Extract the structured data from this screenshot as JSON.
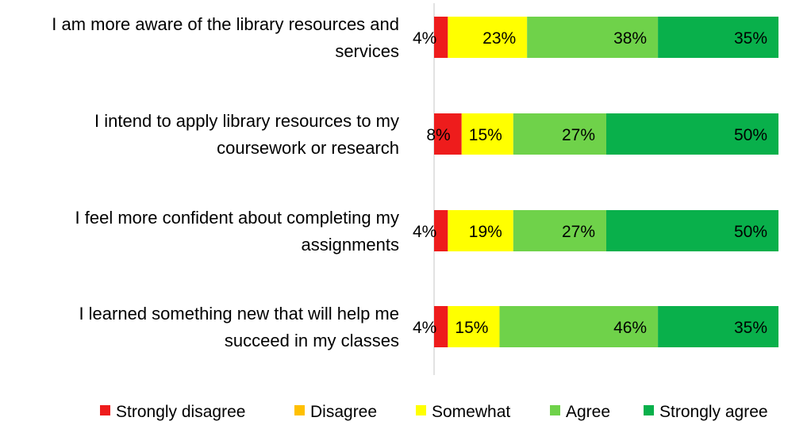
{
  "chart_data": {
    "type": "bar",
    "orientation": "horizontal",
    "stacked": true,
    "percent_stacked": true,
    "categories": [
      [
        "I am more aware of the library resources and",
        "services"
      ],
      [
        "I intend to apply library resources to my",
        "coursework or research"
      ],
      [
        "I feel more confident about completing my",
        "assignments"
      ],
      [
        "I learned something new that will help me",
        "succeed in my classes"
      ]
    ],
    "series": [
      {
        "name": "Strongly disagree",
        "color": "#ee1c1c",
        "values": [
          4,
          8,
          4,
          4
        ],
        "labels": [
          "4%",
          "8%",
          "4%",
          "4%"
        ]
      },
      {
        "name": "Disagree",
        "color": "#ffc000",
        "values": [
          0,
          0,
          0,
          0
        ],
        "labels": [
          "",
          "",
          "",
          ""
        ]
      },
      {
        "name": "Somewhat",
        "color": "#ffff00",
        "values": [
          23,
          15,
          19,
          15
        ],
        "labels": [
          "23%",
          "15%",
          "19%",
          "15%"
        ]
      },
      {
        "name": "Agree",
        "color": "#6fd24a",
        "values": [
          38,
          27,
          27,
          46
        ],
        "labels": [
          "38%",
          "27%",
          "27%",
          "46%"
        ]
      },
      {
        "name": "Strongly agree",
        "color": "#09b04b",
        "values": [
          35,
          50,
          50,
          35
        ],
        "labels": [
          "35%",
          "50%",
          "50%",
          "35%"
        ]
      }
    ],
    "xlim": [
      0,
      100
    ],
    "legend_position": "bottom",
    "grid": false
  }
}
